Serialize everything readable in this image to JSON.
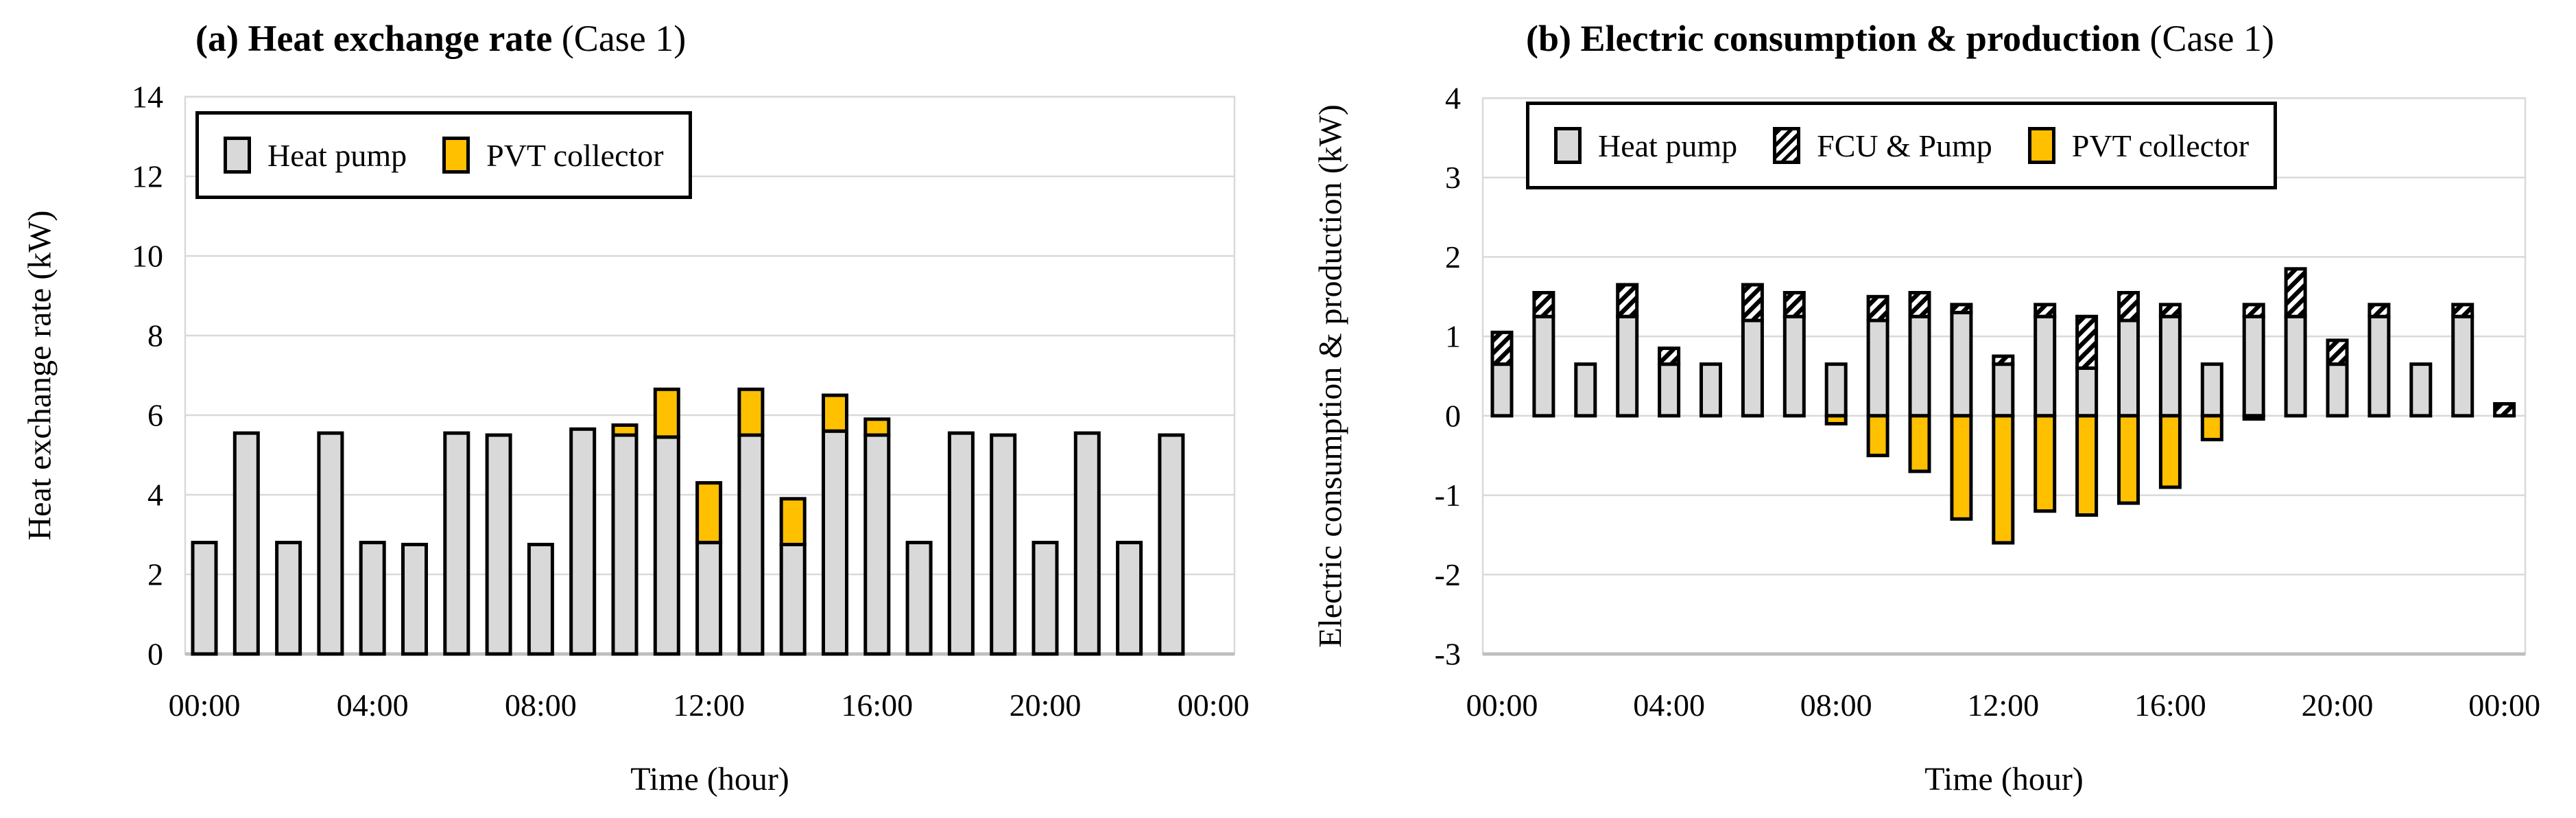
{
  "figure": {
    "background": "#ffffff",
    "colors": {
      "heat_pump_fill": "#d9d9d9",
      "pvt_fill": "#ffc000",
      "fcu_hatch": "#000000",
      "bar_border": "#000000",
      "gridline": "#d9d9d9",
      "axis_line": "#bfbfbf"
    }
  },
  "chart_data": [
    {
      "type": "bar",
      "panel": "a",
      "title_bold": "(a) Heat exchange rate",
      "title_suffix": " (Case 1)",
      "ylabel": "Heat exchange rate (kW)",
      "xlabel": "Time (hour)",
      "ylim": [
        0,
        14
      ],
      "grid": true,
      "legend_position": "top-left-inside",
      "ytick_values": [
        0,
        2,
        4,
        6,
        8,
        10,
        12,
        14
      ],
      "ytick_labels": [
        "0",
        "2",
        "4",
        "6",
        "8",
        "10",
        "12",
        "14"
      ],
      "xticks": [
        {
          "h": 0,
          "label": "00:00"
        },
        {
          "h": 4,
          "label": "04:00"
        },
        {
          "h": 8,
          "label": "08:00"
        },
        {
          "h": 12,
          "label": "12:00"
        },
        {
          "h": 16,
          "label": "16:00"
        },
        {
          "h": 20,
          "label": "20:00"
        },
        {
          "h": 24,
          "label": "00:00"
        }
      ],
      "hours": 24,
      "legend": [
        {
          "label": "Heat pump",
          "style": "gray"
        },
        {
          "label": "PVT collector",
          "style": "yellow"
        }
      ],
      "series": [
        {
          "name": "Heat pump",
          "style": "gray",
          "values": [
            2.8,
            5.55,
            2.8,
            5.55,
            2.8,
            2.75,
            5.55,
            5.5,
            2.75,
            5.65,
            5.5,
            5.45,
            2.8,
            5.5,
            2.75,
            5.6,
            5.5,
            2.8,
            5.55,
            5.5,
            2.8,
            5.55,
            2.8,
            5.5
          ]
        },
        {
          "name": "PVT collector",
          "style": "yellow",
          "values": [
            0,
            0,
            0,
            0,
            0,
            0,
            0,
            0,
            0,
            0,
            0.25,
            1.2,
            1.5,
            1.15,
            1.15,
            0.9,
            0.4,
            0,
            0,
            0,
            0,
            0,
            0,
            0
          ]
        }
      ]
    },
    {
      "type": "bar",
      "panel": "b",
      "title_bold": "(b) Electric consumption & production",
      "title_suffix": " (Case 1)",
      "ylabel": "Electric consumption & production (kW)",
      "xlabel": "Time (hour)",
      "ylim": [
        -3,
        4
      ],
      "grid": true,
      "legend_position": "top-left-inside",
      "ytick_values": [
        4,
        3,
        2,
        1,
        0,
        -1,
        -2,
        -3
      ],
      "ytick_labels": [
        "4",
        "3",
        "2",
        "1",
        "0",
        "-1",
        "-2",
        "-3"
      ],
      "xticks": [
        {
          "h": 0,
          "label": "00:00"
        },
        {
          "h": 4,
          "label": "04:00"
        },
        {
          "h": 8,
          "label": "08:00"
        },
        {
          "h": 12,
          "label": "12:00"
        },
        {
          "h": 16,
          "label": "16:00"
        },
        {
          "h": 20,
          "label": "20:00"
        },
        {
          "h": 24,
          "label": "00:00"
        }
      ],
      "hours": 25,
      "legend": [
        {
          "label": "Heat pump",
          "style": "gray"
        },
        {
          "label": "FCU & Pump",
          "style": "hatch"
        },
        {
          "label": "PVT collector",
          "style": "yellow"
        }
      ],
      "series": [
        {
          "name": "Heat pump",
          "style": "gray",
          "values": [
            0.65,
            1.25,
            0.65,
            1.25,
            0.65,
            0.65,
            1.2,
            1.25,
            0.65,
            1.2,
            1.25,
            1.3,
            0.65,
            1.25,
            0.6,
            1.2,
            1.25,
            0.65,
            1.25,
            1.25,
            0.65,
            1.25,
            0.65,
            1.25,
            0
          ]
        },
        {
          "name": "FCU & Pump",
          "style": "hatch",
          "values": [
            0.4,
            0.3,
            0,
            0.4,
            0.2,
            0,
            0.45,
            0.3,
            0,
            0.3,
            0.3,
            0.1,
            0.1,
            0.15,
            0.65,
            0.35,
            0.15,
            0,
            0.15,
            0.6,
            0.3,
            0.15,
            0,
            0.15,
            0.15
          ]
        },
        {
          "name": "PVT collector",
          "style": "yellow",
          "values": [
            0,
            0,
            0,
            0,
            0,
            0,
            0,
            0,
            -0.1,
            -0.5,
            -0.7,
            -1.3,
            -1.6,
            -1.2,
            -1.25,
            -1.1,
            -0.9,
            -0.3,
            -0.04,
            0,
            0,
            0,
            0,
            0,
            0
          ]
        }
      ]
    }
  ]
}
